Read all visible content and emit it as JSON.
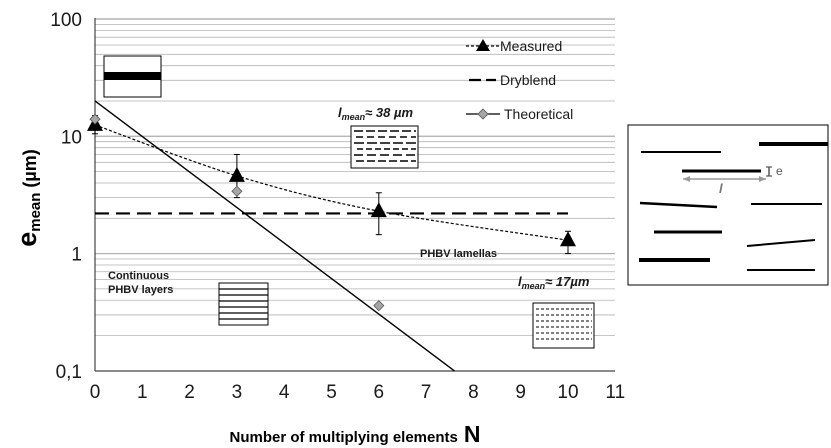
{
  "chart_data": {
    "type": "line",
    "y_scale": "log",
    "xlim": [
      0,
      11
    ],
    "ylim": [
      0.1,
      100
    ],
    "x_ticks": [
      "0",
      "1",
      "2",
      "3",
      "4",
      "5",
      "6",
      "7",
      "8",
      "9",
      "10",
      "11"
    ],
    "y_ticks": [
      "100",
      "10",
      "1",
      "0,1"
    ],
    "xlabel": {
      "main": "Number of multiplying elements",
      "symbol": "N"
    },
    "ylabel": {
      "main": "e",
      "sub": "mean",
      "unit": "(µm)"
    },
    "grid": "horizontal minor log gridlines",
    "legend_placement": "top-right",
    "series": [
      {
        "name": "Measured",
        "marker": "triangle",
        "line_style": "dotted",
        "x": [
          0,
          3,
          6,
          10
        ],
        "y": [
          12.5,
          4.6,
          2.3,
          1.3
        ],
        "err_low": [
          10.5,
          3.0,
          1.45,
          1.0
        ],
        "err_high": [
          15.0,
          7.0,
          3.3,
          1.55
        ]
      },
      {
        "name": "Dryblend",
        "line_style": "dashed",
        "x": [
          0,
          10
        ],
        "y": [
          2.2,
          2.2
        ]
      },
      {
        "name": "Theoretical",
        "marker": "diamond",
        "line_style": "solid",
        "points_x": [
          0,
          3,
          6
        ],
        "points_y": [
          14,
          3.4,
          0.36
        ],
        "line_x": [
          0,
          7.6
        ],
        "line_y": [
          20,
          0.1
        ]
      }
    ],
    "annotations": {
      "lmean_large": {
        "symbol": "l",
        "sub": "mean",
        "text": "≈ 38 µm"
      },
      "lmean_small": {
        "symbol": "l",
        "sub": "mean",
        "text": "≈ 17µm"
      },
      "phbv_lamellas": "PHBV lamellas",
      "continuous_line1": "Continuous",
      "continuous_line2": "PHBV layers"
    },
    "inset": {
      "e_label": "e",
      "l_label": "l"
    }
  },
  "colors": {
    "primary": "#000000",
    "grid": "#b3b3b3",
    "diamond": "#a6a6a6"
  }
}
